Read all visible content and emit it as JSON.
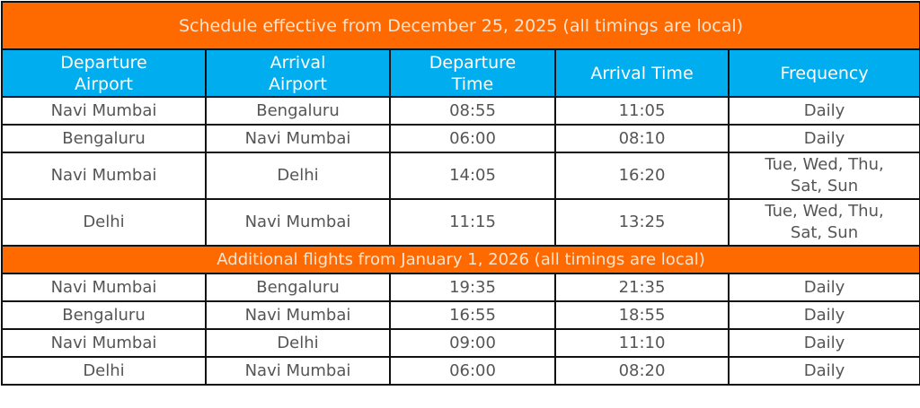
{
  "table": {
    "title": "Schedule effective from December 25, 2025 (all timings are local)",
    "headers": [
      "Departure Airport",
      "Arrival Airport",
      "Departure Time",
      "Arrival Time",
      "Frequency"
    ],
    "rows": [
      [
        "Navi Mumbai",
        "Bengaluru",
        "08:55",
        "11:05",
        "Daily"
      ],
      [
        "Bengaluru",
        "Navi Mumbai",
        "06:00",
        "08:10",
        "Daily"
      ],
      [
        "Navi Mumbai",
        "Delhi",
        "14:05",
        "16:20",
        "Tue, Wed, Thu, Sat, Sun"
      ],
      [
        "Delhi",
        "Navi Mumbai",
        "11:15",
        "13:25",
        "Tue, Wed, Thu, Sat, Sun"
      ]
    ],
    "section_title": "Additional flights from January 1, 2026 (all timings are local)",
    "section_rows": [
      [
        "Navi Mumbai",
        "Bengaluru",
        "19:35",
        "21:35",
        "Daily"
      ],
      [
        "Bengaluru",
        "Navi Mumbai",
        "16:55",
        "18:55",
        "Daily"
      ],
      [
        "Navi Mumbai",
        "Delhi",
        "09:00",
        "11:10",
        "Daily"
      ],
      [
        "Delhi",
        "Navi Mumbai",
        "06:00",
        "08:20",
        "Daily"
      ]
    ]
  }
}
